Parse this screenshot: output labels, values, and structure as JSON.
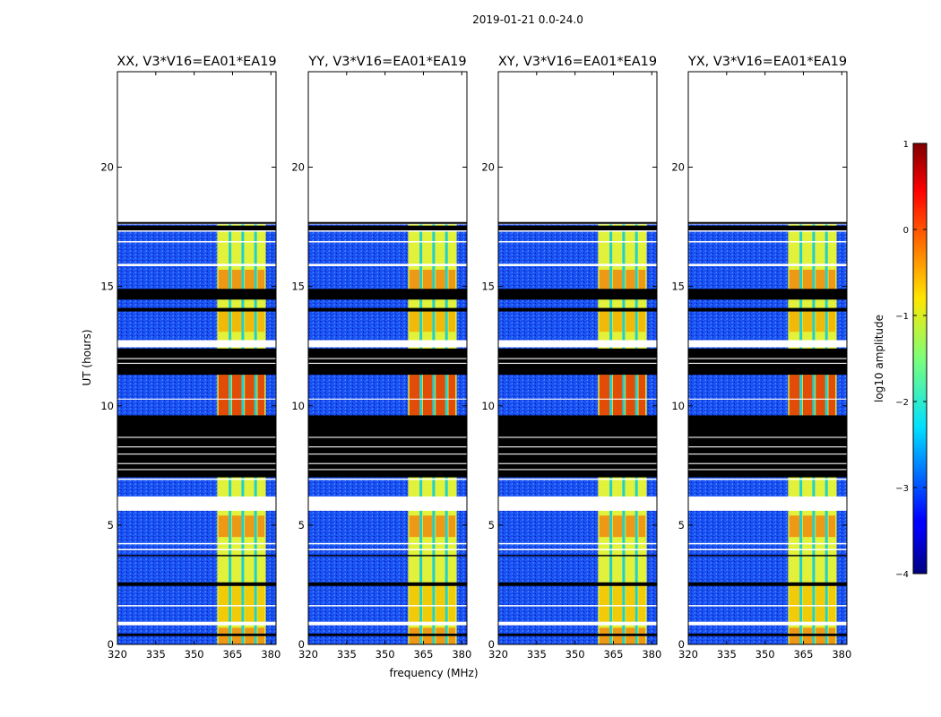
{
  "suptitle": "2019-01-21 0.0-24.0",
  "chart_data": {
    "type": "heatmap",
    "xlabel": "frequency (MHz)",
    "ylabel": "UT (hours)",
    "xlim": [
      320,
      382
    ],
    "ylim": [
      0,
      24
    ],
    "xticks": [
      320,
      335,
      350,
      365,
      380
    ],
    "yticks": [
      0,
      5,
      10,
      15,
      20
    ],
    "panels": [
      {
        "title": "XX, V3*V16=EA01*EA19"
      },
      {
        "title": "YY, V3*V16=EA01*EA19"
      },
      {
        "title": "XY, V3*V16=EA01*EA19"
      },
      {
        "title": "YX, V3*V16=EA01*EA19"
      }
    ],
    "rfi_band_mhz": [
      359,
      378
    ],
    "rfi_channels_mhz": [
      364,
      369,
      374
    ],
    "data_end_ut": 17.6,
    "colorbar": {
      "label": "log10 amplitude",
      "min": -4,
      "max": 1,
      "ticks": [
        -4,
        -3,
        -2,
        -1,
        0,
        1
      ],
      "tick_labels": [
        "−4",
        "−3",
        "−2",
        "−1",
        "0",
        "1"
      ]
    }
  }
}
